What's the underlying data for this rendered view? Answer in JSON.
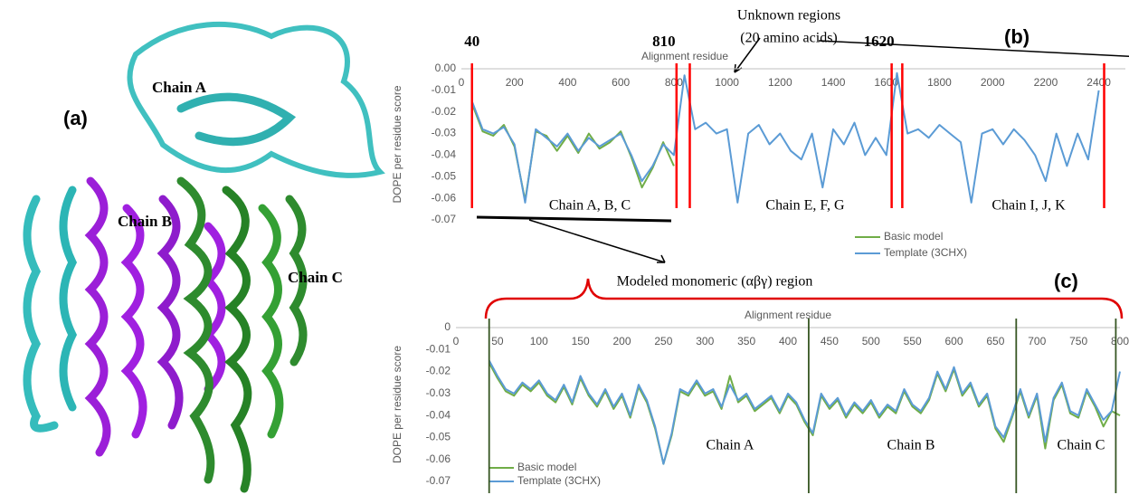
{
  "figure": {
    "panel_label": "(a)",
    "labels": [
      "Chain A",
      "Chain B",
      "Chain C"
    ]
  },
  "chart_data": [
    {
      "type": "line",
      "panel_label": "(b)",
      "xlabel": "Alignment residue",
      "ylabel": "DOPE per residue score",
      "xlim": [
        0,
        2500
      ],
      "xticks": [
        0,
        200,
        400,
        600,
        800,
        1000,
        1200,
        1400,
        1600,
        1800,
        2000,
        2200,
        2400
      ],
      "ylim": [
        -0.07,
        0
      ],
      "yticks": [
        {
          "value": 0,
          "label": "0.00"
        },
        -0.01,
        -0.02,
        -0.03,
        -0.04,
        -0.05,
        -0.06,
        -0.07
      ],
      "boundaries": [
        {
          "value": 40,
          "label": "40"
        },
        {
          "value": 810,
          "label": "810"
        },
        {
          "value": 860
        },
        {
          "value": 1620,
          "label": "1620"
        },
        {
          "value": 1660
        },
        {
          "value": 2420
        }
      ],
      "boundary_color": "#ff0000",
      "annotations": [
        "Chain A, B, C",
        "Chain E, F, G",
        "Chain I, J, K",
        "Unknown regions",
        "(20 amino acids)"
      ],
      "x": [
        40,
        80,
        120,
        160,
        200,
        240,
        280,
        320,
        360,
        400,
        440,
        480,
        520,
        560,
        600,
        640,
        680,
        720,
        760,
        800,
        840,
        880,
        920,
        960,
        1000,
        1040,
        1080,
        1120,
        1160,
        1200,
        1240,
        1280,
        1320,
        1360,
        1400,
        1440,
        1480,
        1520,
        1560,
        1600,
        1640,
        1680,
        1720,
        1760,
        1800,
        1840,
        1880,
        1920,
        1960,
        2000,
        2040,
        2080,
        2120,
        2160,
        2200,
        2240,
        2280,
        2320,
        2360,
        2400
      ],
      "series": [
        {
          "name": "Basic model",
          "color": "#70ad47",
          "values": [
            -0.016,
            -0.029,
            -0.031,
            -0.026,
            -0.036,
            -0.061,
            -0.029,
            -0.031,
            -0.038,
            -0.031,
            -0.039,
            -0.03,
            -0.037,
            -0.034,
            -0.029,
            -0.041,
            -0.055,
            -0.046,
            -0.034,
            -0.045,
            null,
            null,
            null,
            null,
            null,
            null,
            null,
            null,
            null,
            null,
            null,
            null,
            null,
            null,
            null,
            null,
            null,
            null,
            null,
            null,
            null,
            null,
            null,
            null,
            null,
            null,
            null,
            null,
            null,
            null,
            null,
            null,
            null,
            null,
            null,
            null,
            null,
            null,
            null,
            null
          ]
        },
        {
          "name": "Template (3CHX)",
          "color": "#5b9bd5",
          "values": [
            -0.015,
            -0.028,
            -0.03,
            -0.027,
            -0.035,
            -0.062,
            -0.028,
            -0.032,
            -0.036,
            -0.03,
            -0.038,
            -0.032,
            -0.036,
            -0.033,
            -0.03,
            -0.04,
            -0.052,
            -0.045,
            -0.035,
            -0.04,
            -0.003,
            -0.028,
            -0.025,
            -0.03,
            -0.028,
            -0.062,
            -0.03,
            -0.026,
            -0.035,
            -0.03,
            -0.038,
            -0.042,
            -0.03,
            -0.055,
            -0.028,
            -0.035,
            -0.025,
            -0.04,
            -0.032,
            -0.04,
            -0.002,
            -0.03,
            -0.028,
            -0.032,
            -0.026,
            -0.03,
            -0.034,
            -0.062,
            -0.03,
            -0.028,
            -0.035,
            -0.028,
            -0.033,
            -0.04,
            -0.052,
            -0.03,
            -0.045,
            -0.03,
            -0.042,
            -0.01
          ]
        }
      ]
    },
    {
      "type": "line",
      "panel_label": "(c)",
      "xlabel": "Alignment residue",
      "ylabel": "DOPE per residue score",
      "xlim": [
        0,
        800
      ],
      "xticks": [
        0,
        50,
        100,
        150,
        200,
        250,
        300,
        350,
        400,
        450,
        500,
        550,
        600,
        650,
        700,
        750,
        800
      ],
      "ylim": [
        -0.07,
        0
      ],
      "yticks": [
        0,
        -0.01,
        -0.02,
        -0.03,
        -0.04,
        -0.05,
        -0.06,
        -0.07
      ],
      "boundaries": [
        {
          "value": 40
        },
        {
          "value": 425
        },
        {
          "value": 675
        },
        {
          "value": 795
        }
      ],
      "boundary_color": "#375623",
      "annotations": [
        "Modeled monomeric (αβγ) region",
        "Chain A",
        "Chain B",
        "Chain C"
      ],
      "x": [
        40,
        50,
        60,
        70,
        80,
        90,
        100,
        110,
        120,
        130,
        140,
        150,
        160,
        170,
        180,
        190,
        200,
        210,
        220,
        230,
        240,
        250,
        260,
        270,
        280,
        290,
        300,
        310,
        320,
        330,
        340,
        350,
        360,
        370,
        380,
        390,
        400,
        410,
        420,
        430,
        440,
        450,
        460,
        470,
        480,
        490,
        500,
        510,
        520,
        530,
        540,
        550,
        560,
        570,
        580,
        590,
        600,
        610,
        620,
        630,
        640,
        650,
        660,
        670,
        680,
        690,
        700,
        710,
        720,
        730,
        740,
        750,
        760,
        770,
        780,
        790,
        800
      ],
      "series": [
        {
          "name": "Basic model",
          "color": "#70ad47",
          "values": [
            -0.016,
            -0.023,
            -0.029,
            -0.031,
            -0.026,
            -0.029,
            -0.025,
            -0.031,
            -0.034,
            -0.027,
            -0.035,
            -0.023,
            -0.031,
            -0.036,
            -0.029,
            -0.037,
            -0.031,
            -0.041,
            -0.027,
            -0.034,
            -0.046,
            -0.062,
            -0.049,
            -0.029,
            -0.031,
            -0.025,
            -0.031,
            -0.029,
            -0.037,
            -0.022,
            -0.034,
            -0.031,
            -0.038,
            -0.035,
            -0.032,
            -0.039,
            -0.031,
            -0.035,
            -0.043,
            -0.049,
            -0.031,
            -0.037,
            -0.033,
            -0.041,
            -0.035,
            -0.039,
            -0.034,
            -0.041,
            -0.036,
            -0.039,
            -0.029,
            -0.036,
            -0.039,
            -0.033,
            -0.021,
            -0.029,
            -0.019,
            -0.031,
            -0.026,
            -0.036,
            -0.031,
            -0.046,
            -0.052,
            -0.041,
            -0.029,
            -0.041,
            -0.031,
            -0.055,
            -0.033,
            -0.026,
            -0.039,
            -0.041,
            -0.029,
            -0.036,
            -0.045,
            -0.038,
            -0.04
          ]
        },
        {
          "name": "Template (3CHX)",
          "color": "#5b9bd5",
          "values": [
            -0.015,
            -0.022,
            -0.028,
            -0.03,
            -0.025,
            -0.028,
            -0.024,
            -0.03,
            -0.033,
            -0.026,
            -0.034,
            -0.022,
            -0.03,
            -0.035,
            -0.028,
            -0.036,
            -0.03,
            -0.04,
            -0.026,
            -0.033,
            -0.045,
            -0.062,
            -0.048,
            -0.028,
            -0.03,
            -0.024,
            -0.03,
            -0.028,
            -0.036,
            -0.026,
            -0.033,
            -0.03,
            -0.037,
            -0.034,
            -0.031,
            -0.038,
            -0.03,
            -0.034,
            -0.042,
            -0.048,
            -0.03,
            -0.036,
            -0.032,
            -0.04,
            -0.034,
            -0.038,
            -0.033,
            -0.04,
            -0.035,
            -0.038,
            -0.028,
            -0.035,
            -0.038,
            -0.032,
            -0.02,
            -0.028,
            -0.018,
            -0.03,
            -0.025,
            -0.035,
            -0.03,
            -0.045,
            -0.05,
            -0.04,
            -0.028,
            -0.04,
            -0.03,
            -0.052,
            -0.032,
            -0.025,
            -0.038,
            -0.04,
            -0.028,
            -0.035,
            -0.042,
            -0.038,
            -0.02
          ]
        }
      ]
    }
  ]
}
